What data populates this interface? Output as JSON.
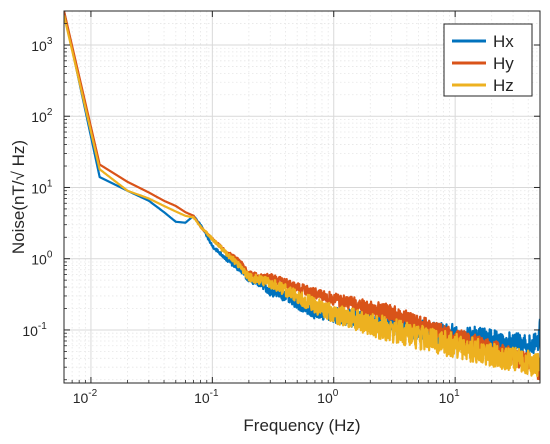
{
  "chart_data": {
    "type": "line",
    "xlabel": "Frequency (Hz)",
    "ylabel": "Noise(nT/√ Hz)",
    "x_scale": "log",
    "y_scale": "log",
    "xlim": [
      0.006,
      50
    ],
    "ylim": [
      0.018,
      3000
    ],
    "grid": true,
    "minor_grid": true,
    "legend_position": "top-right",
    "x_ticks": [
      {
        "value": 0.01,
        "base": "10",
        "exp": "-2"
      },
      {
        "value": 0.1,
        "base": "10",
        "exp": "-1"
      },
      {
        "value": 1,
        "base": "10",
        "exp": "0"
      },
      {
        "value": 10,
        "base": "10",
        "exp": "1"
      }
    ],
    "y_ticks": [
      {
        "value": 0.1,
        "base": "10",
        "exp": "-1"
      },
      {
        "value": 1,
        "base": "10",
        "exp": "0"
      },
      {
        "value": 10,
        "base": "10",
        "exp": "1"
      },
      {
        "value": 100,
        "base": "10",
        "exp": "2"
      },
      {
        "value": 1000,
        "base": "10",
        "exp": "3"
      }
    ],
    "series": [
      {
        "name": "Hx",
        "color": "#0072BD",
        "noise_band": 0.3,
        "points": [
          [
            0.006,
            3000
          ],
          [
            0.0118,
            14
          ],
          [
            0.02,
            9
          ],
          [
            0.03,
            6.5
          ],
          [
            0.04,
            4.5
          ],
          [
            0.05,
            3.3
          ],
          [
            0.06,
            3.2
          ],
          [
            0.07,
            4
          ],
          [
            0.08,
            3.0
          ],
          [
            0.1,
            1.5
          ],
          [
            0.13,
            1.0
          ],
          [
            0.17,
            0.7
          ],
          [
            0.2,
            0.52
          ],
          [
            0.25,
            0.45
          ],
          [
            0.3,
            0.35
          ],
          [
            0.4,
            0.3
          ],
          [
            0.5,
            0.24
          ],
          [
            0.7,
            0.18
          ],
          [
            1,
            0.16
          ],
          [
            2,
            0.135
          ],
          [
            3,
            0.12
          ],
          [
            5,
            0.1
          ],
          [
            10,
            0.085
          ],
          [
            20,
            0.075
          ],
          [
            40,
            0.06
          ],
          [
            48,
            0.065
          ],
          [
            49,
            0.1
          ],
          [
            50,
            0.12
          ]
        ]
      },
      {
        "name": "Hy",
        "color": "#D95319",
        "noise_band": 0.25,
        "points": [
          [
            0.006,
            3000
          ],
          [
            0.0118,
            21
          ],
          [
            0.02,
            12
          ],
          [
            0.03,
            8.5
          ],
          [
            0.04,
            6.5
          ],
          [
            0.05,
            5.5
          ],
          [
            0.06,
            4.5
          ],
          [
            0.07,
            4
          ],
          [
            0.08,
            2.8
          ],
          [
            0.1,
            1.9
          ],
          [
            0.13,
            1.25
          ],
          [
            0.17,
            0.9
          ],
          [
            0.2,
            0.62
          ],
          [
            0.25,
            0.55
          ],
          [
            0.3,
            0.55
          ],
          [
            0.5,
            0.4
          ],
          [
            0.7,
            0.32
          ],
          [
            1,
            0.27
          ],
          [
            2,
            0.2
          ],
          [
            3,
            0.17
          ],
          [
            5,
            0.12
          ],
          [
            10,
            0.08
          ],
          [
            20,
            0.055
          ],
          [
            40,
            0.035
          ],
          [
            50,
            0.025
          ]
        ]
      },
      {
        "name": "Hz",
        "color": "#EDB120",
        "noise_band": 0.35,
        "points": [
          [
            0.006,
            2600
          ],
          [
            0.0118,
            18
          ],
          [
            0.02,
            9
          ],
          [
            0.03,
            7
          ],
          [
            0.04,
            5.5
          ],
          [
            0.05,
            4.6
          ],
          [
            0.06,
            4.0
          ],
          [
            0.07,
            3.8
          ],
          [
            0.08,
            2.8
          ],
          [
            0.1,
            1.9
          ],
          [
            0.13,
            1.2
          ],
          [
            0.17,
            0.78
          ],
          [
            0.2,
            0.55
          ],
          [
            0.25,
            0.5
          ],
          [
            0.3,
            0.45
          ],
          [
            0.5,
            0.3
          ],
          [
            0.7,
            0.22
          ],
          [
            1,
            0.17
          ],
          [
            2,
            0.12
          ],
          [
            3,
            0.1
          ],
          [
            5,
            0.08
          ],
          [
            10,
            0.06
          ],
          [
            20,
            0.045
          ],
          [
            40,
            0.035
          ],
          [
            50,
            0.03
          ]
        ]
      }
    ]
  }
}
